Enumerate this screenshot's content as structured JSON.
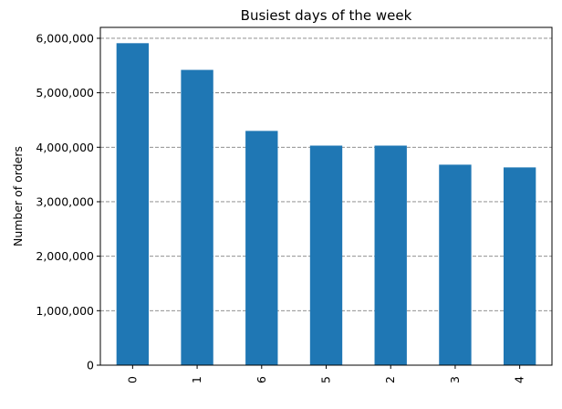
{
  "chart_data": {
    "type": "bar",
    "title": "Busiest days of the week",
    "xlabel": "",
    "ylabel": "Number of orders",
    "categories": [
      "0",
      "1",
      "6",
      "5",
      "2",
      "3",
      "4"
    ],
    "values": [
      5910000,
      5420000,
      4300000,
      4030000,
      4030000,
      3680000,
      3630000
    ],
    "ylim": [
      0,
      6200000
    ],
    "yticks": [
      0,
      1000000,
      2000000,
      3000000,
      4000000,
      5000000,
      6000000
    ],
    "ytick_labels": [
      "0",
      "1,000,000",
      "2,000,000",
      "3,000,000",
      "4,000,000",
      "5,000,000",
      "6,000,000"
    ],
    "grid": "horizontal dashed",
    "bar_color": "#1f77b4",
    "grid_color": "#808080"
  }
}
